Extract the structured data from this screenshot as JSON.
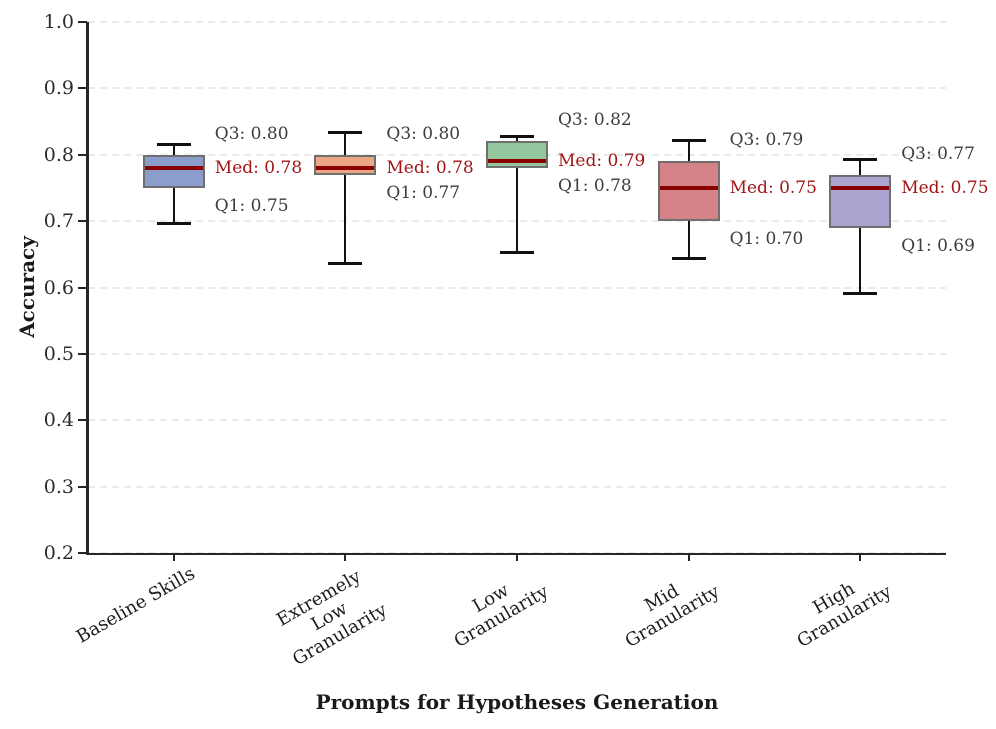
{
  "chart_data": {
    "type": "boxplot",
    "title": "",
    "xlabel": "Prompts for Hypotheses Generation",
    "ylabel": "Accuracy",
    "ylim": [
      0.2,
      1.0
    ],
    "yticks": [
      "1.0",
      "0.9",
      "0.8",
      "0.7",
      "0.6",
      "0.5",
      "0.4",
      "0.3",
      "0.2"
    ],
    "grid": "horizontal-dashed",
    "legend": "none",
    "categories": [
      "Baseline Skills",
      "Extremely\nLow\nGranularity",
      "Low\nGranularity",
      "Mid\nGranularity",
      "High\nGranularity"
    ],
    "series": [
      {
        "category": "Baseline Skills",
        "fill": "#8A9DCB",
        "whisker_low": 0.696,
        "q1": 0.75,
        "median": 0.78,
        "q3": 0.8,
        "whisker_high": 0.816,
        "labels": {
          "q3": "Q3: 0.80",
          "med": "Med: 0.78",
          "q1": "Q1: 0.75"
        }
      },
      {
        "category": "Extremely Low Granularity",
        "fill": "#EAA687",
        "whisker_low": 0.636,
        "q1": 0.77,
        "median": 0.78,
        "q3": 0.8,
        "whisker_high": 0.834,
        "labels": {
          "q3": "Q3: 0.80",
          "med": "Med: 0.78",
          "q1": "Q1: 0.77"
        }
      },
      {
        "category": "Low Granularity",
        "fill": "#94C69E",
        "whisker_low": 0.653,
        "q1": 0.78,
        "median": 0.79,
        "q3": 0.82,
        "whisker_high": 0.827,
        "labels": {
          "q3": "Q3: 0.82",
          "med": "Med: 0.79",
          "q1": "Q1: 0.78"
        }
      },
      {
        "category": "Mid Granularity",
        "fill": "#D48287",
        "whisker_low": 0.643,
        "q1": 0.7,
        "median": 0.75,
        "q3": 0.79,
        "whisker_high": 0.822,
        "labels": {
          "q3": "Q3: 0.79",
          "med": "Med: 0.75",
          "q1": "Q1: 0.70"
        }
      },
      {
        "category": "High Granularity",
        "fill": "#ABA4CE",
        "whisker_low": 0.591,
        "q1": 0.69,
        "median": 0.75,
        "q3": 0.77,
        "whisker_high": 0.793,
        "labels": {
          "q3": "Q3: 0.77",
          "med": "Med: 0.75",
          "q1": "Q1: 0.69"
        }
      }
    ],
    "colors": {
      "median_line": "#8B0000",
      "box_edge": "#6f6f6f",
      "whisker": "#111111",
      "annotation_gray": "#3d3d3d",
      "annotation_red": "#A01515",
      "gridline": "#e7e7e7",
      "axis": "#262626",
      "background": "#ffffff"
    }
  }
}
